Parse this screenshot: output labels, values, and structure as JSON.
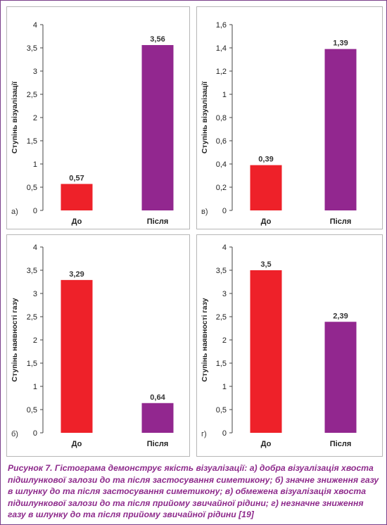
{
  "colors": {
    "before": "#ee2129",
    "after": "#92278f"
  },
  "chart_data": [
    {
      "type": "bar",
      "panel_label": "а)",
      "categories": [
        "До",
        "Після"
      ],
      "values": [
        0.57,
        3.56
      ],
      "value_labels": [
        "0,57",
        "3,56"
      ],
      "ylabel": "Ступінь візуалізації",
      "ylim": [
        0,
        4
      ],
      "yticks": [
        "0",
        "0,5",
        "1",
        "1,5",
        "2",
        "2,5",
        "3",
        "3,5",
        "4"
      ],
      "grid": false
    },
    {
      "type": "bar",
      "panel_label": "в)",
      "categories": [
        "До",
        "Після"
      ],
      "values": [
        0.39,
        1.39
      ],
      "value_labels": [
        "0,39",
        "1,39"
      ],
      "ylabel": "Ступінь візуалізації",
      "ylim": [
        0,
        1.6
      ],
      "yticks": [
        "0",
        "0,2",
        "0,4",
        "0,6",
        "0,8",
        "1",
        "1,2",
        "1,4",
        "1,6"
      ],
      "grid": false
    },
    {
      "type": "bar",
      "panel_label": "б)",
      "categories": [
        "До",
        "Після"
      ],
      "values": [
        3.29,
        0.64
      ],
      "value_labels": [
        "3,29",
        "0,64"
      ],
      "ylabel": "Ступінь наявності газу",
      "ylim": [
        0,
        4
      ],
      "yticks": [
        "0",
        "0,5",
        "1",
        "1,5",
        "2",
        "2,5",
        "3",
        "3,5",
        "4"
      ],
      "grid": false
    },
    {
      "type": "bar",
      "panel_label": "г)",
      "categories": [
        "До",
        "Після"
      ],
      "values": [
        3.5,
        2.39
      ],
      "value_labels": [
        "3,5",
        "2,39"
      ],
      "ylabel": "Ступінь наявності газу",
      "ylim": [
        0,
        4
      ],
      "yticks": [
        "0",
        "0,5",
        "1",
        "1,5",
        "2",
        "2,5",
        "3",
        "3,5",
        "4"
      ],
      "grid": false
    }
  ],
  "caption": "Рисунок 7.  Гістограма демонструє якість візуалізації: а) добра візуалізація хвоста підшлункової залози до та після застосування симетикону; б) значне зниження газу в шлунку до та після застосування симетикону; в) обмежена візуалізація хвоста підшлункової залози до та після прийому звичайної рідини; г) незначне зниження газу в шлунку до та після прийому звичайної рідини [19]"
}
